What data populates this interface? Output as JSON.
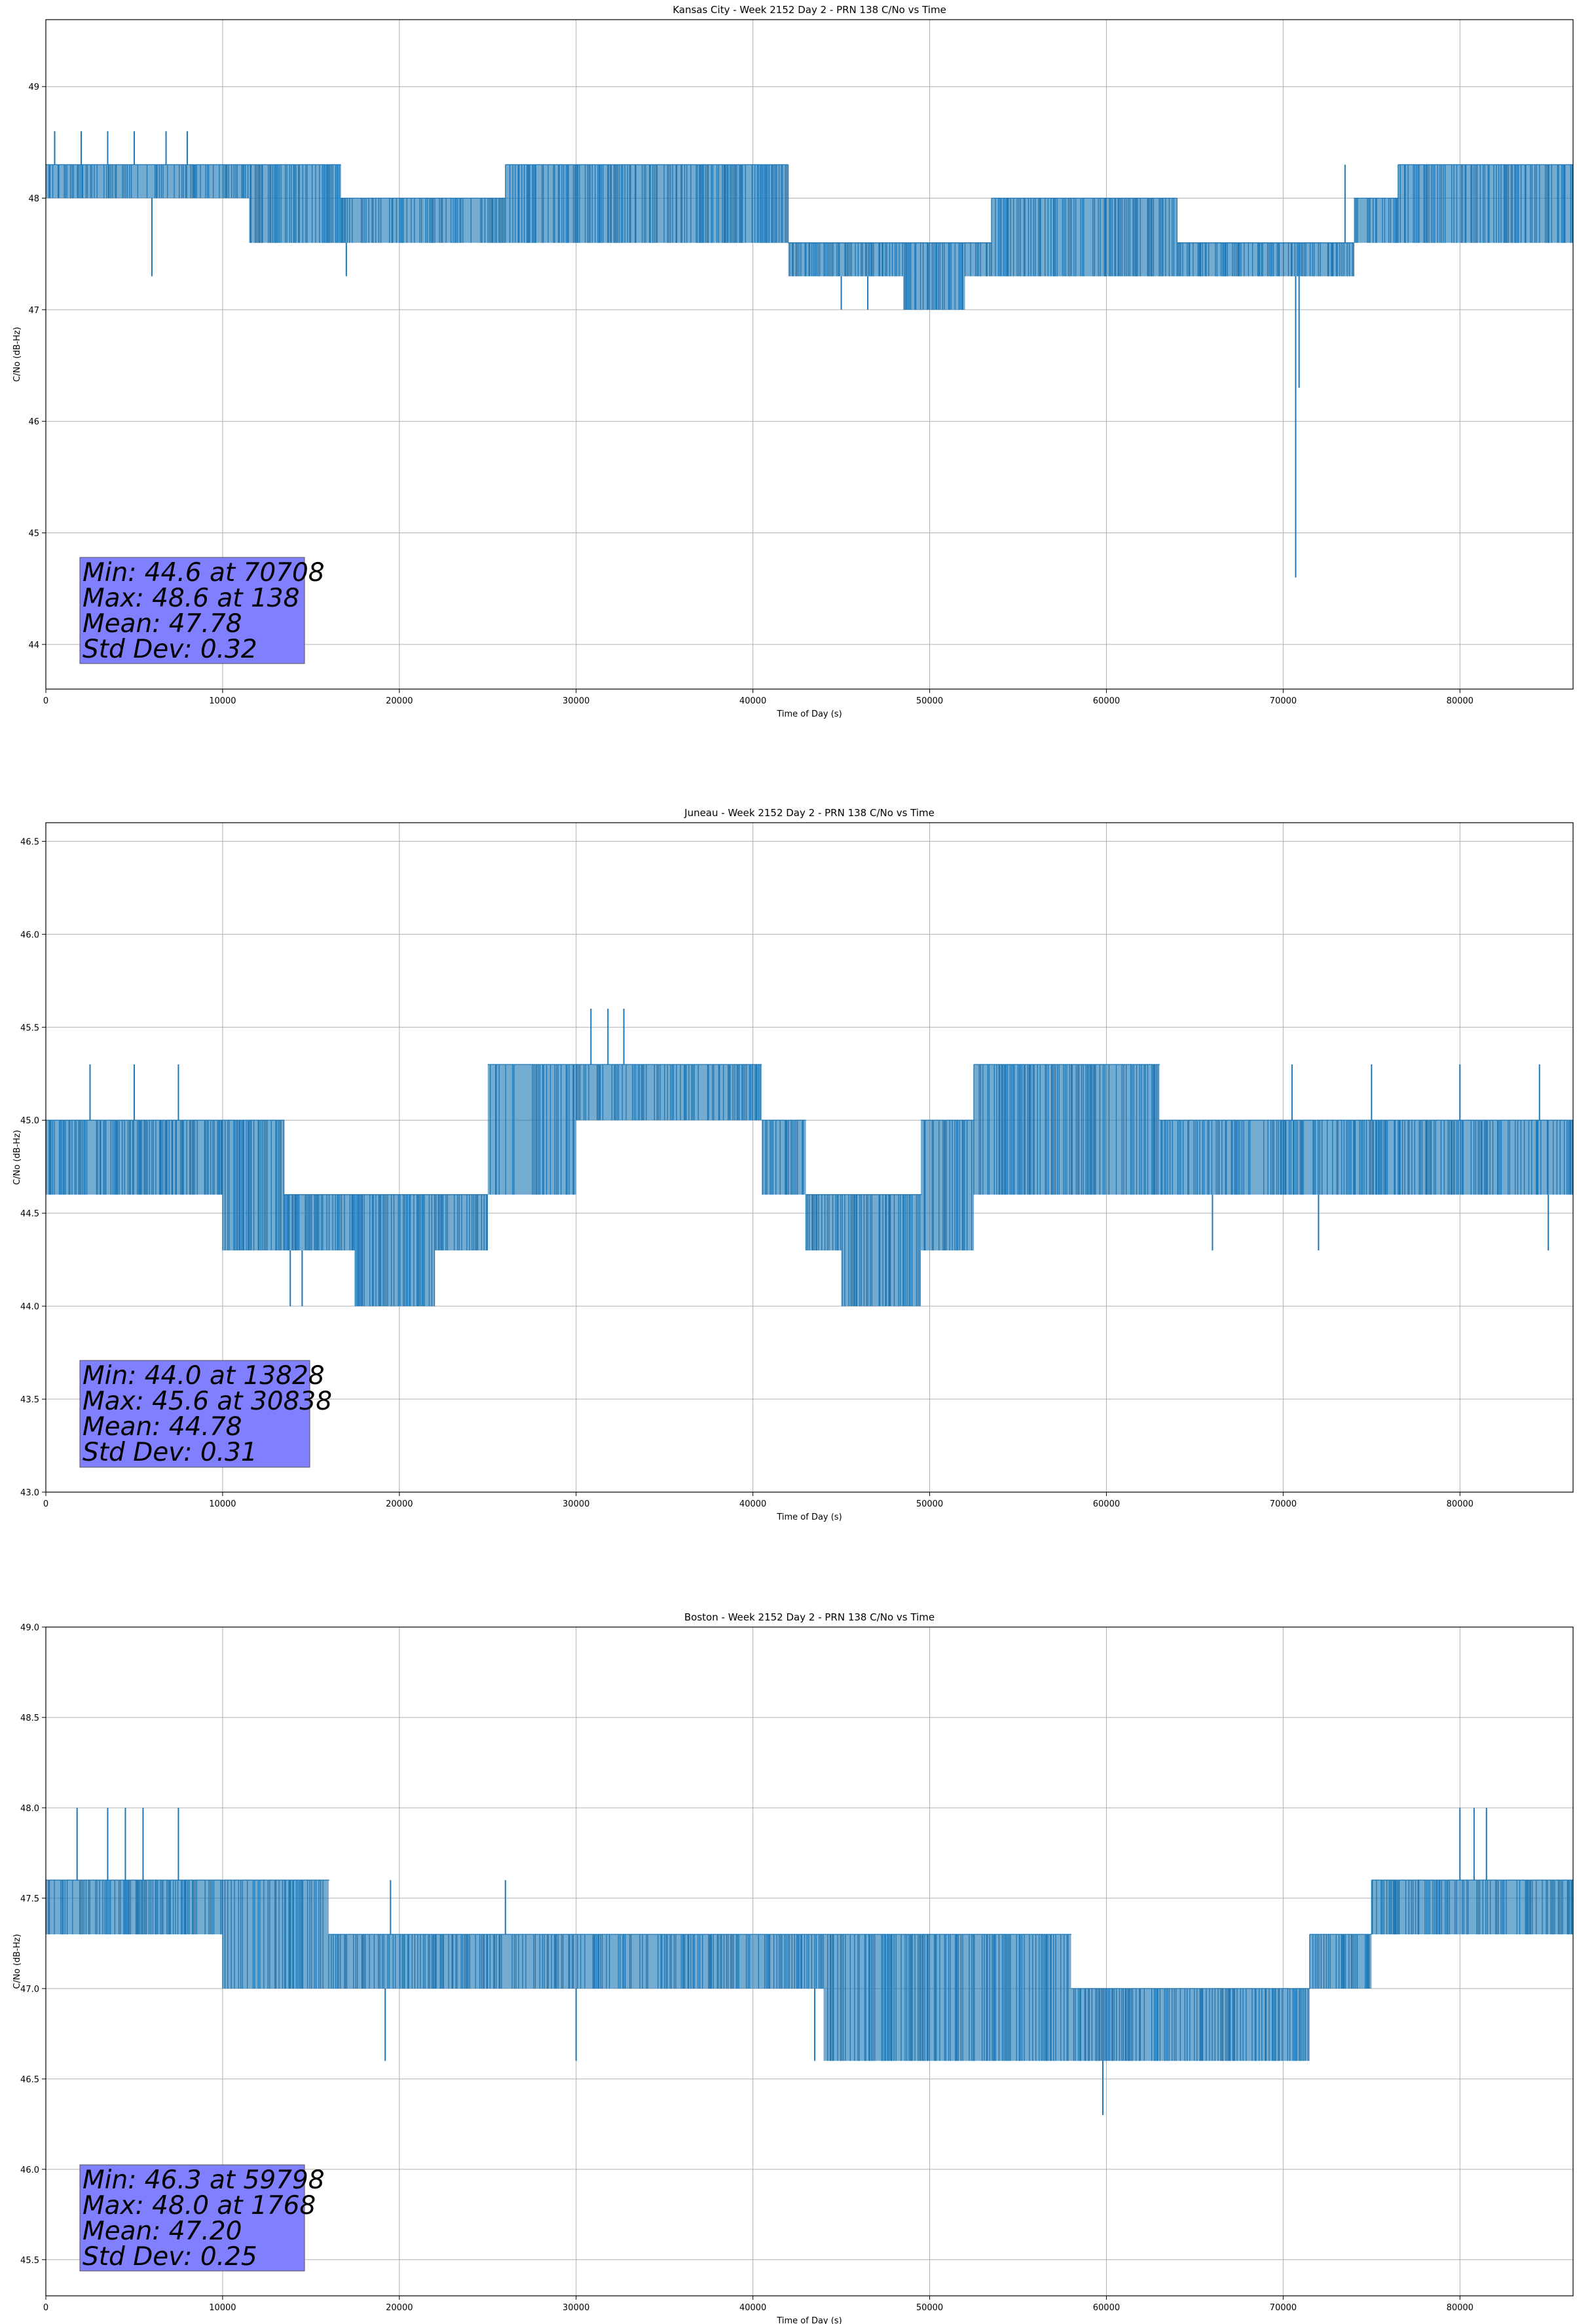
{
  "chart_data": [
    {
      "type": "line",
      "title": "Kansas City - Week 2152 Day 2 - PRN 138 C/No vs Time",
      "xlabel": "Time of Day (s)",
      "ylabel": "C/No (dB-Hz)",
      "xlim": [
        0,
        86400
      ],
      "ylim": [
        43.6,
        49.6
      ],
      "xticks": [
        0,
        10000,
        20000,
        30000,
        40000,
        50000,
        60000,
        70000,
        80000
      ],
      "yticks": [
        44,
        45,
        46,
        47,
        48,
        49
      ],
      "grid": true,
      "series_color": "#1f77b4",
      "series": [
        {
          "levels": [
            {
              "x": [
                0,
                11500
              ],
              "y": [
                48.0,
                48.3
              ]
            },
            {
              "x": [
                11500,
                16700
              ],
              "y": [
                47.6,
                48.3
              ]
            },
            {
              "x": [
                16700,
                26000
              ],
              "y": [
                47.6,
                48.0
              ]
            },
            {
              "x": [
                26000,
                42000
              ],
              "y": [
                47.6,
                48.3
              ]
            },
            {
              "x": [
                42000,
                48500
              ],
              "y": [
                47.3,
                47.6
              ]
            },
            {
              "x": [
                48500,
                52000
              ],
              "y": [
                47.0,
                47.6
              ]
            },
            {
              "x": [
                52000,
                53500
              ],
              "y": [
                47.3,
                47.6
              ]
            },
            {
              "x": [
                53500,
                64000
              ],
              "y": [
                47.3,
                48.0
              ]
            },
            {
              "x": [
                64000,
                70500
              ],
              "y": [
                47.3,
                47.6
              ]
            },
            {
              "x": [
                70500,
                74000
              ],
              "y": [
                47.3,
                47.6
              ]
            },
            {
              "x": [
                74000,
                76500
              ],
              "y": [
                47.6,
                48.0
              ]
            },
            {
              "x": [
                76500,
                86400
              ],
              "y": [
                47.6,
                48.3
              ]
            }
          ],
          "spikes": [
            {
              "x": 6000,
              "y": 47.3
            },
            {
              "x": 500,
              "y": 48.6
            },
            {
              "x": 2000,
              "y": 48.6
            },
            {
              "x": 3500,
              "y": 48.6
            },
            {
              "x": 5000,
              "y": 48.6
            },
            {
              "x": 6800,
              "y": 48.6
            },
            {
              "x": 8000,
              "y": 48.6
            },
            {
              "x": 17000,
              "y": 47.3
            },
            {
              "x": 45000,
              "y": 47.0
            },
            {
              "x": 46500,
              "y": 47.0
            },
            {
              "x": 70708,
              "y": 44.6
            },
            {
              "x": 70900,
              "y": 46.3
            },
            {
              "x": 73500,
              "y": 48.3
            }
          ]
        }
      ],
      "stats": {
        "min": "Min: 44.6 at 70708",
        "max": "Max: 48.6 at 138",
        "mean": "Mean: 47.78",
        "std": "Std Dev: 0.32"
      }
    },
    {
      "type": "line",
      "title": "Juneau - Week 2152 Day 2 - PRN 138 C/No vs Time",
      "xlabel": "Time of Day (s)",
      "ylabel": "C/No (dB-Hz)",
      "xlim": [
        0,
        86400
      ],
      "ylim": [
        43.0,
        46.6
      ],
      "xticks": [
        0,
        10000,
        20000,
        30000,
        40000,
        50000,
        60000,
        70000,
        80000
      ],
      "yticks": [
        43.0,
        43.5,
        44.0,
        44.5,
        45.0,
        45.5,
        46.0,
        46.5
      ],
      "grid": true,
      "series_color": "#1f77b4",
      "series": [
        {
          "levels": [
            {
              "x": [
                0,
                10000
              ],
              "y": [
                44.6,
                45.0
              ]
            },
            {
              "x": [
                10000,
                13500
              ],
              "y": [
                44.3,
                45.0
              ]
            },
            {
              "x": [
                13500,
                17500
              ],
              "y": [
                44.3,
                44.6
              ]
            },
            {
              "x": [
                17500,
                22000
              ],
              "y": [
                44.0,
                44.6
              ]
            },
            {
              "x": [
                22000,
                25000
              ],
              "y": [
                44.3,
                44.6
              ]
            },
            {
              "x": [
                25000,
                30000
              ],
              "y": [
                44.6,
                45.3
              ]
            },
            {
              "x": [
                30000,
                40500
              ],
              "y": [
                45.0,
                45.3
              ]
            },
            {
              "x": [
                40500,
                43000
              ],
              "y": [
                44.6,
                45.0
              ]
            },
            {
              "x": [
                43000,
                45000
              ],
              "y": [
                44.3,
                44.6
              ]
            },
            {
              "x": [
                45000,
                49500
              ],
              "y": [
                44.0,
                44.6
              ]
            },
            {
              "x": [
                49500,
                52500
              ],
              "y": [
                44.3,
                45.0
              ]
            },
            {
              "x": [
                52500,
                63000
              ],
              "y": [
                44.6,
                45.3
              ]
            },
            {
              "x": [
                63000,
                86400
              ],
              "y": [
                44.6,
                45.0
              ]
            }
          ],
          "spikes": [
            {
              "x": 30838,
              "y": 45.6
            },
            {
              "x": 31800,
              "y": 45.6
            },
            {
              "x": 32700,
              "y": 45.6
            },
            {
              "x": 13828,
              "y": 44.0
            },
            {
              "x": 14500,
              "y": 44.0
            },
            {
              "x": 2500,
              "y": 45.3
            },
            {
              "x": 5000,
              "y": 45.3
            },
            {
              "x": 7500,
              "y": 45.3
            },
            {
              "x": 70500,
              "y": 45.3
            },
            {
              "x": 75000,
              "y": 45.3
            },
            {
              "x": 80000,
              "y": 45.3
            },
            {
              "x": 84500,
              "y": 45.3
            },
            {
              "x": 66000,
              "y": 44.3
            },
            {
              "x": 72000,
              "y": 44.3
            },
            {
              "x": 85000,
              "y": 44.3
            }
          ]
        }
      ],
      "stats": {
        "min": "Min: 44.0 at 13828",
        "max": "Max: 45.6 at 30838",
        "mean": "Mean: 44.78",
        "std": "Std Dev: 0.31"
      }
    },
    {
      "type": "line",
      "title": "Boston - Week 2152 Day 2 - PRN 138 C/No vs Time",
      "xlabel": "Time of Day (s)",
      "ylabel": "C/No (dB-Hz)",
      "xlim": [
        0,
        86400
      ],
      "ylim": [
        45.3,
        49.0
      ],
      "xticks": [
        0,
        10000,
        20000,
        30000,
        40000,
        50000,
        60000,
        70000,
        80000
      ],
      "yticks": [
        45.5,
        46.0,
        46.5,
        47.0,
        47.5,
        48.0,
        48.5,
        49.0
      ],
      "grid": true,
      "series_color": "#1f77b4",
      "series": [
        {
          "levels": [
            {
              "x": [
                0,
                10000
              ],
              "y": [
                47.3,
                47.6
              ]
            },
            {
              "x": [
                10000,
                16000
              ],
              "y": [
                47.0,
                47.6
              ]
            },
            {
              "x": [
                16000,
                44000
              ],
              "y": [
                47.0,
                47.3
              ]
            },
            {
              "x": [
                44000,
                52000
              ],
              "y": [
                46.6,
                47.3
              ]
            },
            {
              "x": [
                52000,
                58000
              ],
              "y": [
                46.6,
                47.3
              ]
            },
            {
              "x": [
                58000,
                71500
              ],
              "y": [
                46.6,
                47.0
              ]
            },
            {
              "x": [
                71500,
                75000
              ],
              "y": [
                47.0,
                47.3
              ]
            },
            {
              "x": [
                75000,
                86400
              ],
              "y": [
                47.3,
                47.6
              ]
            }
          ],
          "spikes": [
            {
              "x": 1768,
              "y": 48.0
            },
            {
              "x": 3500,
              "y": 48.0
            },
            {
              "x": 4500,
              "y": 48.0
            },
            {
              "x": 5500,
              "y": 48.0
            },
            {
              "x": 7500,
              "y": 48.0
            },
            {
              "x": 80000,
              "y": 48.0
            },
            {
              "x": 80800,
              "y": 48.0
            },
            {
              "x": 81500,
              "y": 48.0
            },
            {
              "x": 59798,
              "y": 46.3
            },
            {
              "x": 19200,
              "y": 46.6
            },
            {
              "x": 30000,
              "y": 46.6
            },
            {
              "x": 43500,
              "y": 46.6
            },
            {
              "x": 19500,
              "y": 47.6
            },
            {
              "x": 26000,
              "y": 47.6
            }
          ]
        }
      ],
      "stats": {
        "min": "Min: 46.3 at 59798",
        "max": "Max: 48.0 at 1768",
        "mean": "Mean: 47.20",
        "std": "Std Dev: 0.25"
      }
    }
  ]
}
